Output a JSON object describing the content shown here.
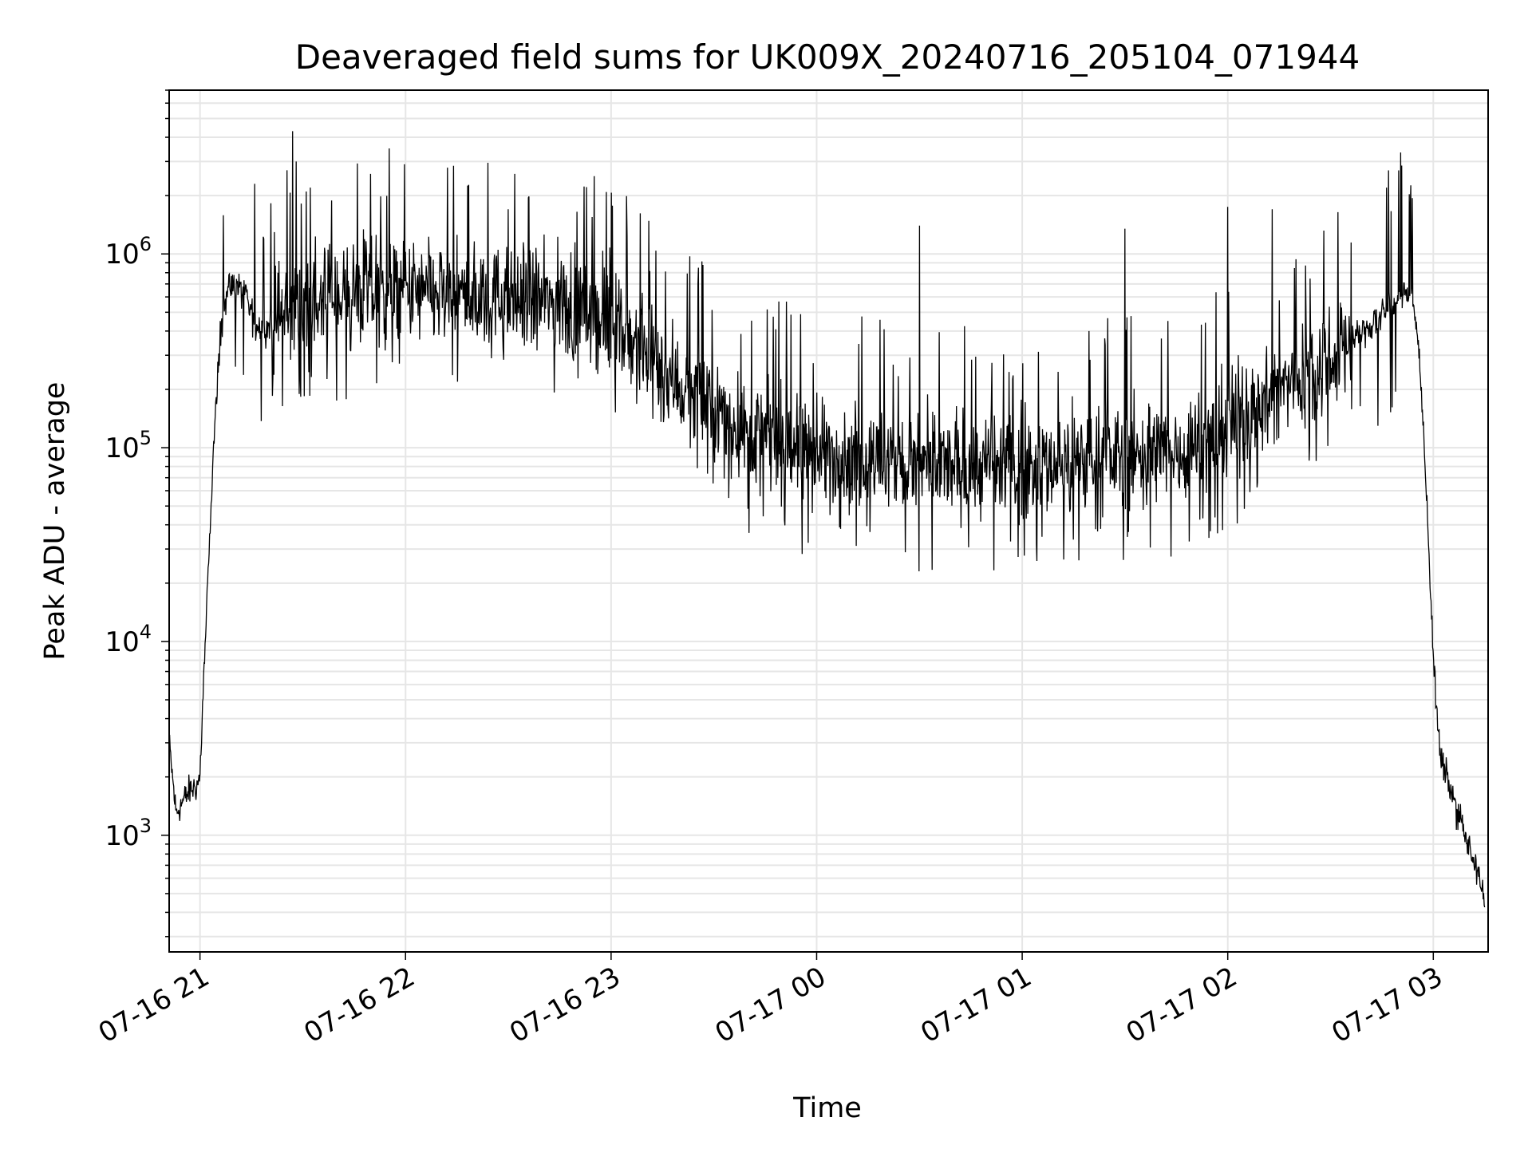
{
  "chart_data": {
    "type": "line",
    "title": "Deaveraged field sums for UK009X_20240716_205104_071944",
    "xlabel": "Time",
    "ylabel": "Peak ADU - average",
    "yscale": "log",
    "xlim": [
      "2024-07-16 20:51",
      "2024-07-17 03:16"
    ],
    "ylim": [
      250,
      7000000
    ],
    "grid": "on (major and minor)",
    "line_color": "#000000",
    "grid_color": "#e6e6e6",
    "x_ticks": [
      {
        "x": "2024-07-16 21:00",
        "label": "07-16 21"
      },
      {
        "x": "2024-07-16 22:00",
        "label": "07-16 22"
      },
      {
        "x": "2024-07-16 23:00",
        "label": "07-16 23"
      },
      {
        "x": "2024-07-17 00:00",
        "label": "07-17 00"
      },
      {
        "x": "2024-07-17 01:00",
        "label": "07-17 01"
      },
      {
        "x": "2024-07-17 02:00",
        "label": "07-17 02"
      },
      {
        "x": "2024-07-17 03:00",
        "label": "07-17 03"
      }
    ],
    "y_ticks": [
      {
        "y": 1000,
        "base": "10",
        "exp": "3"
      },
      {
        "y": 10000,
        "base": "10",
        "exp": "4"
      },
      {
        "y": 100000,
        "base": "10",
        "exp": "5"
      },
      {
        "y": 1000000,
        "base": "10",
        "exp": "6"
      }
    ],
    "series": [
      {
        "x": [
          "2024-07-16 20:51",
          "2024-07-16 20:53",
          "2024-07-16 20:55",
          "2024-07-16 20:57",
          "2024-07-16 20:59",
          "2024-07-16 21:00",
          "2024-07-16 21:01",
          "2024-07-16 21:02",
          "2024-07-16 21:03",
          "2024-07-16 21:04",
          "2024-07-16 21:05",
          "2024-07-16 21:06",
          "2024-07-16 21:07",
          "2024-07-16 21:08",
          "2024-07-16 21:10",
          "2024-07-16 21:12",
          "2024-07-16 21:14",
          "2024-07-16 21:16",
          "2024-07-16 21:18",
          "2024-07-16 21:20",
          "2024-07-16 21:25",
          "2024-07-16 21:30",
          "2024-07-16 21:40",
          "2024-07-16 21:50",
          "2024-07-16 22:00",
          "2024-07-16 22:15",
          "2024-07-16 22:30",
          "2024-07-16 22:45",
          "2024-07-16 23:00",
          "2024-07-16 23:15",
          "2024-07-16 23:30",
          "2024-07-16 23:45",
          "2024-07-17 00:00",
          "2024-07-17 00:15",
          "2024-07-17 00:30",
          "2024-07-17 00:45",
          "2024-07-17 01:00",
          "2024-07-17 01:15",
          "2024-07-17 01:30",
          "2024-07-17 01:45",
          "2024-07-17 01:55",
          "2024-07-17 02:00",
          "2024-07-17 02:10",
          "2024-07-17 02:20",
          "2024-07-17 02:30",
          "2024-07-17 02:40",
          "2024-07-17 02:45",
          "2024-07-17 02:48",
          "2024-07-17 02:50",
          "2024-07-17 02:52",
          "2024-07-17 02:54",
          "2024-07-17 02:56",
          "2024-07-17 02:58",
          "2024-07-17 03:00",
          "2024-07-17 03:02",
          "2024-07-17 03:04",
          "2024-07-17 03:06",
          "2024-07-17 03:08",
          "2024-07-17 03:10",
          "2024-07-17 03:12",
          "2024-07-17 03:14",
          "2024-07-17 03:15"
        ],
        "y": [
          3000,
          1300,
          1500,
          1700,
          1800,
          2000,
          6000,
          15000,
          40000,
          100000,
          200000,
          380000,
          550000,
          650000,
          700000,
          650000,
          550000,
          450000,
          400000,
          420000,
          500000,
          550000,
          600000,
          650000,
          620000,
          600000,
          580000,
          560000,
          450000,
          250000,
          150000,
          110000,
          95000,
          85000,
          80000,
          78000,
          80000,
          85000,
          90000,
          95000,
          110000,
          130000,
          170000,
          230000,
          300000,
          400000,
          480000,
          550000,
          600000,
          620000,
          560000,
          300000,
          60000,
          8000,
          2500,
          2000,
          1500,
          1200,
          900,
          700,
          550,
          450
        ],
        "spikes": [
          {
            "x": "2024-07-16 21:27",
            "y": 4300000
          },
          {
            "x": "2024-07-16 21:28",
            "y": 3000000
          },
          {
            "x": "2024-07-16 21:16",
            "y": 2300000
          },
          {
            "x": "2024-07-16 21:31",
            "y": 2100000
          },
          {
            "x": "2024-07-16 22:30",
            "y": 1700000
          },
          {
            "x": "2024-07-16 22:50",
            "y": 1650000
          },
          {
            "x": "2024-07-17 02:00",
            "y": 1750000
          },
          {
            "x": "2024-07-17 02:13",
            "y": 1700000
          },
          {
            "x": "2024-07-17 02:47",
            "y": 2700000
          },
          {
            "x": "2024-07-17 00:30",
            "y": 1400000
          },
          {
            "x": "2024-07-17 01:30",
            "y": 1350000
          }
        ]
      }
    ]
  }
}
